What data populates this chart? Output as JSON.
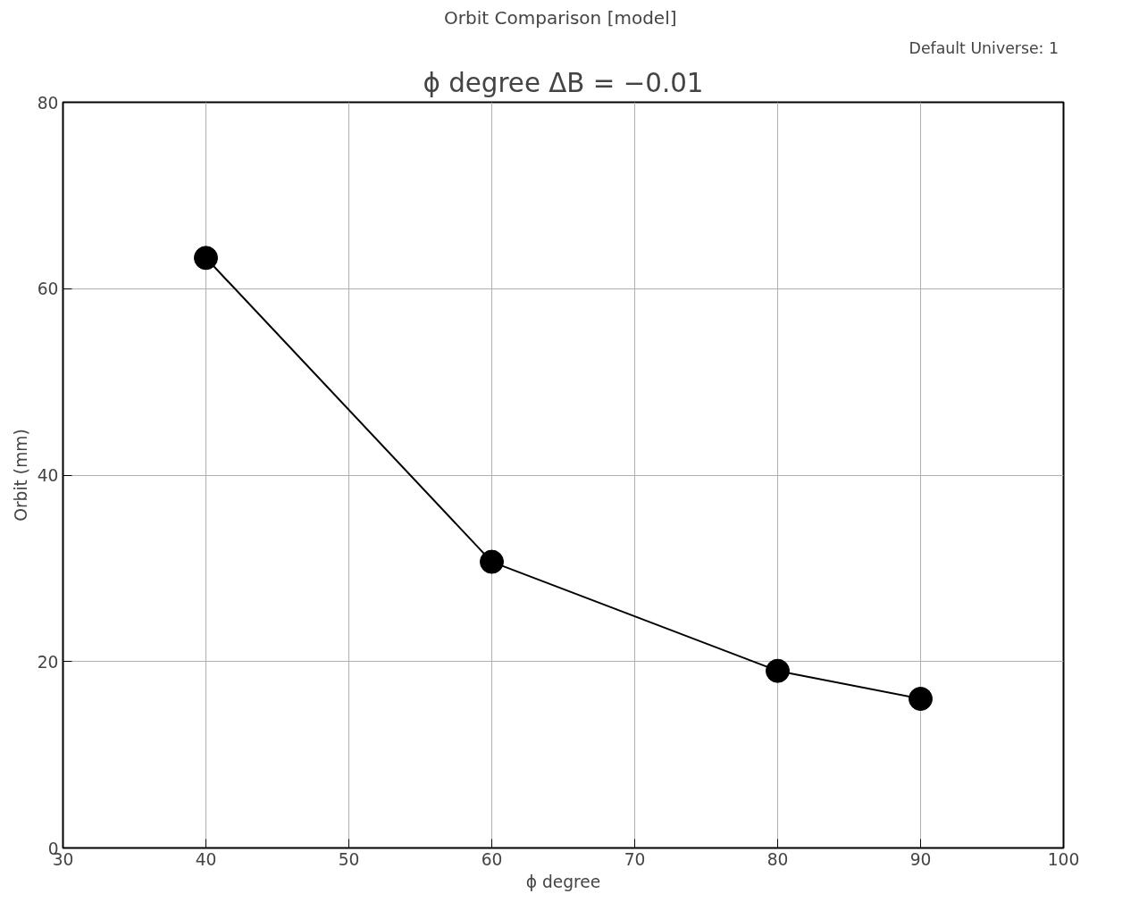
{
  "chart_data": {
    "type": "line",
    "title": "ϕ degree ΔB = −0.01",
    "subtitle": "Orbit Comparison  [model]",
    "xlabel": "ϕ degree",
    "ylabel": "Orbit (mm)",
    "annotations": [
      "Default Universe:  1"
    ],
    "x": [
      40,
      60,
      80,
      90
    ],
    "series": [
      {
        "color": "#000000",
        "values": [
          63.3,
          30.7,
          19.0,
          16.0
        ]
      }
    ],
    "xlim": [
      30,
      100
    ],
    "xticks": [
      30,
      40,
      50,
      60,
      70,
      80,
      90,
      100
    ],
    "ylim": [
      0,
      80
    ],
    "yticks": [
      0,
      20,
      40,
      60,
      80
    ],
    "grid": true,
    "marker": "circle",
    "line_style": "solid"
  }
}
